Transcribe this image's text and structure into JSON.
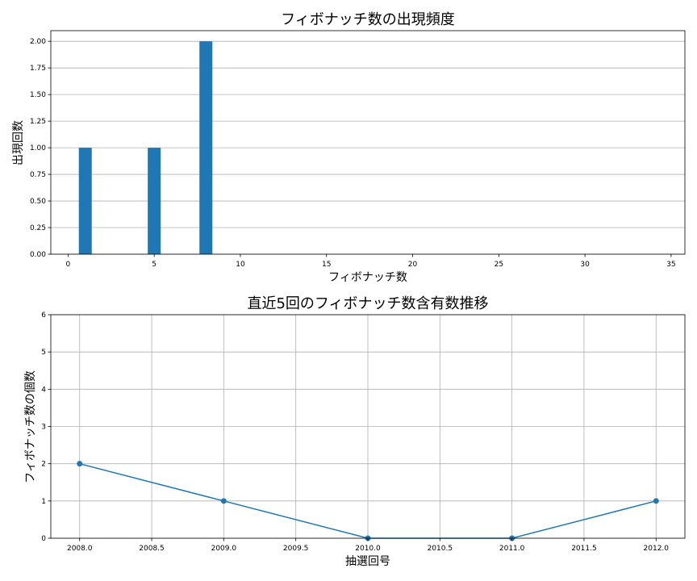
{
  "chart_data": [
    {
      "type": "bar",
      "title": "フィボナッチ数の出現頻度",
      "xlabel": "フィボナッチ数",
      "ylabel": "出現回数",
      "x": [
        1,
        5,
        8
      ],
      "values": [
        1,
        1,
        2
      ],
      "xlim": [
        -1,
        35.8
      ],
      "ylim": [
        0,
        2.1
      ],
      "xticks": [
        0,
        5,
        10,
        15,
        20,
        25,
        30,
        35
      ],
      "xtick_labels": [
        "0",
        "5",
        "10",
        "15",
        "20",
        "25",
        "30",
        "35"
      ],
      "yticks": [
        0,
        0.25,
        0.5,
        0.75,
        1.0,
        1.25,
        1.5,
        1.75,
        2.0
      ],
      "ytick_labels": [
        "0.00",
        "0.25",
        "0.50",
        "0.75",
        "1.00",
        "1.25",
        "1.50",
        "1.75",
        "2.00"
      ],
      "grid": "y",
      "color": "#1f77b4"
    },
    {
      "type": "line",
      "title": "直近5回のフィボナッチ数含有数推移",
      "xlabel": "抽選回号",
      "ylabel": "フィボナッチ数の個数",
      "x": [
        2008,
        2009,
        2010,
        2011,
        2012
      ],
      "values": [
        2,
        1,
        0,
        0,
        1
      ],
      "xlim": [
        2007.8,
        2012.2
      ],
      "ylim": [
        0,
        6
      ],
      "xticks": [
        2008.0,
        2008.5,
        2009.0,
        2009.5,
        2010.0,
        2010.5,
        2011.0,
        2011.5,
        2012.0
      ],
      "xtick_labels": [
        "2008.0",
        "2008.5",
        "2009.0",
        "2009.5",
        "2010.0",
        "2010.5",
        "2011.0",
        "2011.5",
        "2012.0"
      ],
      "yticks": [
        0,
        1,
        2,
        3,
        4,
        5,
        6
      ],
      "ytick_labels": [
        "0",
        "1",
        "2",
        "3",
        "4",
        "5",
        "6"
      ],
      "grid": "both",
      "marker": "circle",
      "color": "#1f77b4"
    }
  ]
}
